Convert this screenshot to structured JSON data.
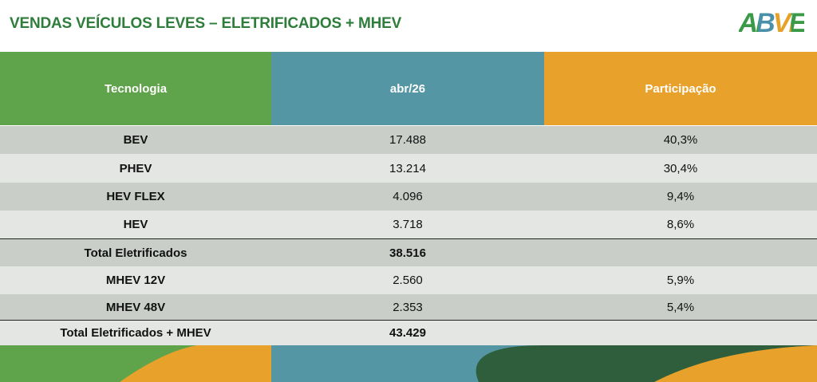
{
  "header": {
    "title": "VENDAS VEÍCULOS LEVES – ELETRIFICADOS + MHEV",
    "logo": "ABVE"
  },
  "table": {
    "columns": [
      "Tecnologia",
      "abr/26",
      "Participação"
    ],
    "rows": [
      [
        "BEV",
        "17.488",
        "40,3%"
      ],
      [
        "PHEV",
        "13.214",
        "30,4%"
      ],
      [
        "HEV FLEX",
        "4.096",
        "9,4%"
      ],
      [
        "HEV",
        "3.718",
        "8,6%"
      ],
      [
        "Total Eletrificados",
        "38.516"
      ],
      [
        "MHEV 12V",
        "2.560",
        "5,9%"
      ],
      [
        "MHEV 48V",
        "2.353",
        "5,4%"
      ],
      [
        "Total Eletrificados + MHEV",
        "43.429"
      ]
    ]
  }
}
